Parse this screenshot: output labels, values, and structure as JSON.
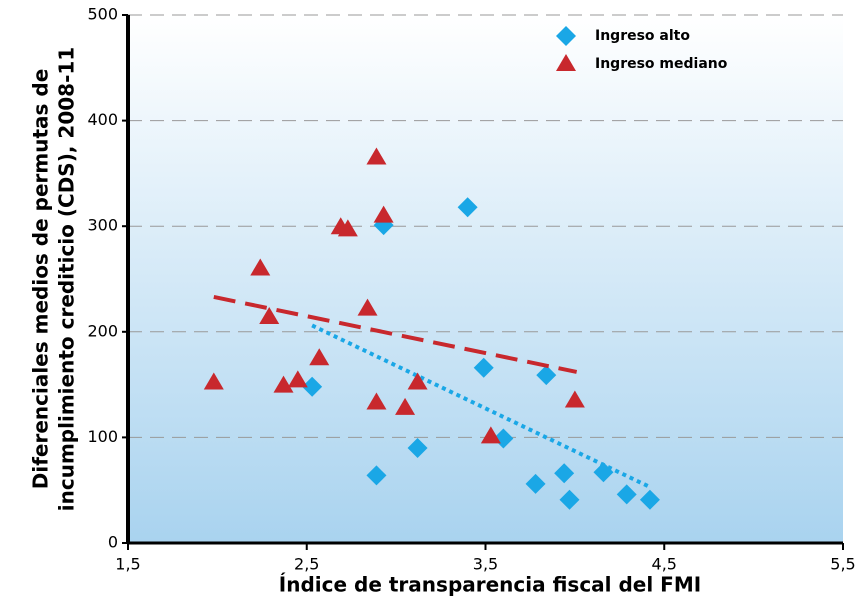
{
  "chart_data": {
    "type": "scatter",
    "xlabel": "Índice de transparencia fiscal del FMI",
    "ylabel": [
      "Diferenciales medios de permutas de",
      "incumplimiento crediticio (CDS), 2008-11"
    ],
    "xlim": [
      1.5,
      5.5
    ],
    "xticks": [
      {
        "value": 1.5,
        "label": "1,5"
      },
      {
        "value": 2.5,
        "label": "2,5"
      },
      {
        "value": 3.5,
        "label": "3,5"
      },
      {
        "value": 4.5,
        "label": "4,5"
      },
      {
        "value": 5.5,
        "label": "5,5"
      }
    ],
    "ylim": [
      0,
      500
    ],
    "yticks": [
      0,
      100,
      200,
      300,
      400,
      500
    ],
    "grid": true,
    "legend": "top-right",
    "series": [
      {
        "name": "Ingreso alto",
        "color": "#1aa7e6",
        "marker": "diamond",
        "x": [
          2.53,
          2.93,
          2.89,
          3.12,
          3.4,
          3.49,
          3.6,
          3.78,
          3.84,
          3.94,
          3.97,
          4.16,
          4.29,
          4.42
        ],
        "values": [
          148,
          301,
          64,
          90,
          318,
          166,
          99,
          56,
          159,
          66,
          41,
          67,
          46,
          41
        ],
        "trend": {
          "x": [
            2.53,
            4.42
          ],
          "values": [
            206,
            53
          ],
          "dash": "dotted"
        }
      },
      {
        "name": "Ingreso mediano",
        "color": "#c8282d",
        "marker": "triangle",
        "x": [
          1.98,
          2.24,
          2.29,
          2.37,
          2.45,
          2.57,
          2.69,
          2.73,
          2.84,
          2.89,
          2.89,
          2.93,
          3.05,
          3.12,
          3.53,
          4.0
        ],
        "values": [
          152,
          260,
          214,
          149,
          154,
          175,
          299,
          297,
          222,
          365,
          133,
          310,
          128,
          152,
          101,
          135
        ],
        "trend": {
          "x": [
            1.98,
            4.01
          ],
          "values": [
            233,
            162
          ],
          "dash": "dashed"
        }
      }
    ]
  }
}
